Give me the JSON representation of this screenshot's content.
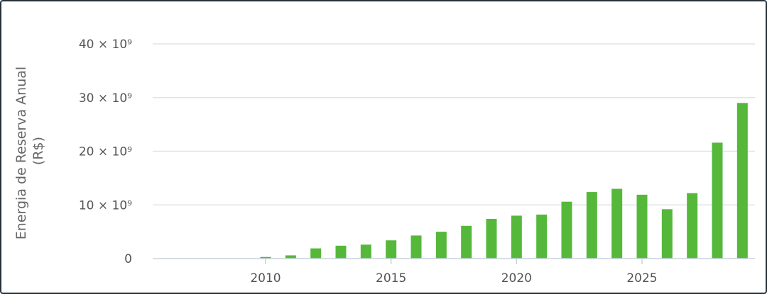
{
  "chart_data": {
    "type": "bar",
    "title": "",
    "xlabel": "",
    "ylabel_lines": [
      "Energia de Reserva Anual",
      "(R$)"
    ],
    "x": [
      2010,
      2011,
      2012,
      2013,
      2014,
      2015,
      2016,
      2017,
      2018,
      2019,
      2020,
      2021,
      2022,
      2023,
      2024,
      2025,
      2026,
      2027,
      2028,
      2029
    ],
    "values": [
      300000000.0,
      600000000.0,
      1900000000.0,
      2400000000.0,
      2600000000.0,
      3400000000.0,
      4300000000.0,
      5000000000.0,
      6100000000.0,
      7400000000.0,
      8000000000.0,
      8200000000.0,
      10600000000.0,
      12400000000.0,
      13000000000.0,
      11900000000.0,
      9200000000.0,
      12200000000.0,
      21600000000.0,
      29000000000.0
    ],
    "xticks": [
      2010,
      2015,
      2020,
      2025
    ],
    "xtick_labels": [
      "2010",
      "2015",
      "2020",
      "2025"
    ],
    "yticks": [
      0,
      10000000000.0,
      20000000000.0,
      30000000000.0,
      40000000000.0
    ],
    "ytick_labels": [
      "0",
      "10 × 10⁹",
      "20 × 10⁹",
      "30 × 10⁹",
      "40 × 10⁹"
    ],
    "ylim": [
      0,
      40000000000.0
    ],
    "xlim": [
      2005.5,
      2029.5
    ],
    "bar_color": "#55b83a",
    "grid": true
  }
}
